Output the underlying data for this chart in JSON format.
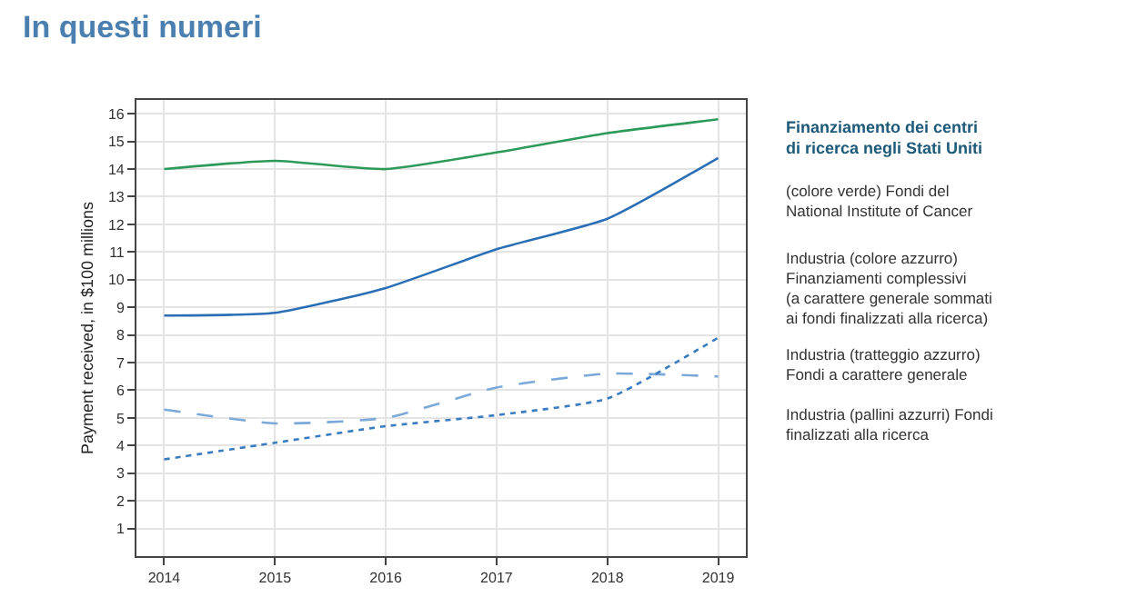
{
  "chart_data": {
    "type": "line",
    "title": "In questi numeri",
    "ylabel": "Payment received, in $100 millions",
    "x": [
      2014,
      2015,
      2016,
      2017,
      2018,
      2019
    ],
    "series": [
      {
        "color": "#2e9a5a",
        "line_style": "solid",
        "values": [
          14.0,
          14.3,
          14.0,
          14.6,
          15.3,
          15.8
        ]
      },
      {
        "color": "#2a6fb5",
        "line_style": "solid",
        "values": [
          8.7,
          8.8,
          9.7,
          11.1,
          12.2,
          14.4
        ]
      },
      {
        "color": "#7aa8d8",
        "line_style": "dashed",
        "values": [
          5.3,
          4.8,
          5.0,
          6.1,
          6.6,
          6.5
        ]
      },
      {
        "color": "#3a7cc0",
        "line_style": "dotted",
        "values": [
          3.5,
          4.1,
          4.7,
          5.1,
          5.7,
          7.9
        ]
      }
    ],
    "xlim": [
      2013.75,
      2019.25
    ],
    "xticks": [
      2014,
      2015,
      2016,
      2017,
      2018,
      2019
    ],
    "ylim": [
      0,
      16.5
    ],
    "yticks": [
      1,
      2,
      3,
      4,
      5,
      6,
      7,
      8,
      9,
      10,
      11,
      12,
      13,
      14,
      15,
      16
    ],
    "grid": true,
    "annotations": [
      "Finanziamento dei centri\ndi ricerca negli Stati Uniti",
      "(colore verde) Fondi del\nNational Institute of Cancer",
      "Industria (colore azzurro)\nFinanziamenti complessivi\n(a carattere generale sommati\nai fondi finalizzati alla ricerca)",
      "Industria (tratteggio azzurro)\nFondi a carattere generale",
      "Industria (pallini azzurri) Fondi\nfinalizzati alla ricerca"
    ]
  }
}
